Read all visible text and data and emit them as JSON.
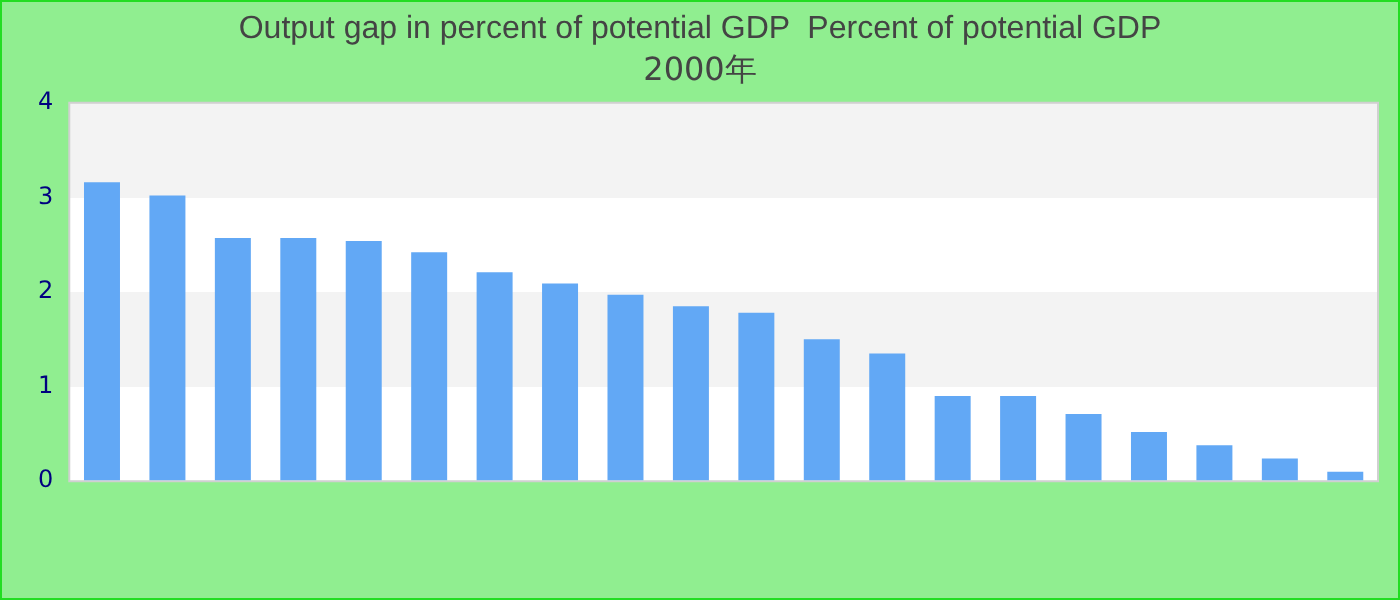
{
  "chart_data": {
    "type": "bar",
    "title": "Output gap in percent of potential GDP  Percent of potential GDP",
    "subtitle": "2000年",
    "categories": [
      null,
      null,
      null,
      null,
      null,
      null,
      null,
      null,
      null,
      null,
      null,
      null,
      null,
      null,
      null,
      null,
      null,
      null,
      null,
      null
    ],
    "values": [
      3.16,
      3.02,
      2.57,
      2.57,
      2.54,
      2.42,
      2.21,
      2.09,
      1.97,
      1.85,
      1.78,
      1.5,
      1.35,
      0.9,
      0.9,
      0.71,
      0.52,
      0.38,
      0.24,
      0.1
    ],
    "color": "#62a8f5",
    "ylim": [
      0,
      4
    ],
    "yticks": [
      0,
      1,
      2,
      3,
      4
    ],
    "grid": true,
    "legend": false
  }
}
